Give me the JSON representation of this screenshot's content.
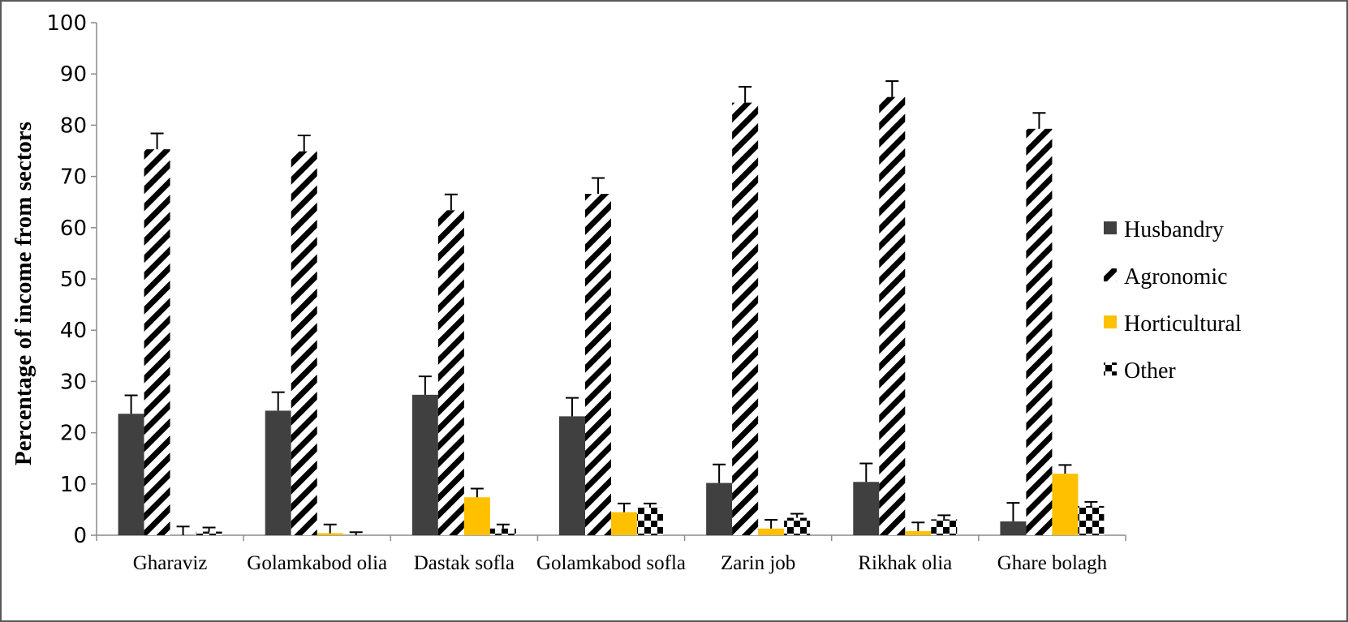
{
  "chart_data": {
    "type": "bar",
    "ylabel": "Percentage of income from sectors",
    "xlabel": "",
    "ylim": [
      0,
      100
    ],
    "yticks": [
      0,
      10,
      20,
      30,
      40,
      50,
      60,
      70,
      80,
      90,
      100
    ],
    "categories": [
      "Gharaviz",
      "Golamkabod olia",
      "Dastak sofla",
      "Golamkabod sofla",
      "Zarin job",
      "Rikhak olia",
      "Ghare bolagh"
    ],
    "series": [
      {
        "name": "Husbandry",
        "pattern": "solid",
        "color": "#404040",
        "values": [
          23.7,
          24.3,
          27.4,
          23.2,
          10.2,
          10.4,
          2.7
        ],
        "errors": [
          3.6,
          3.6,
          3.6,
          3.6,
          3.6,
          3.6,
          3.6
        ]
      },
      {
        "name": "Agronomic",
        "pattern": "diagonal-stripes",
        "color": "#000000",
        "values": [
          75.3,
          74.9,
          63.4,
          66.6,
          84.4,
          85.5,
          79.3
        ],
        "errors": [
          3.1,
          3.1,
          3.1,
          3.1,
          3.1,
          3.1,
          3.1
        ]
      },
      {
        "name": "Horticultural",
        "pattern": "solid",
        "color": "#FFC000",
        "values": [
          0,
          0.4,
          7.4,
          4.5,
          1.3,
          0.8,
          12.0
        ],
        "errors": [
          1.7,
          1.7,
          1.7,
          1.7,
          1.7,
          1.7,
          1.7
        ]
      },
      {
        "name": "Other",
        "pattern": "checkerboard",
        "color": "#000000",
        "values": [
          0.7,
          0,
          1.3,
          5.4,
          3.4,
          3.1,
          5.7
        ],
        "errors": [
          0.8,
          0.6,
          0.8,
          0.8,
          0.8,
          0.8,
          0.8
        ]
      }
    ],
    "legend_position": "right",
    "grid": false
  }
}
